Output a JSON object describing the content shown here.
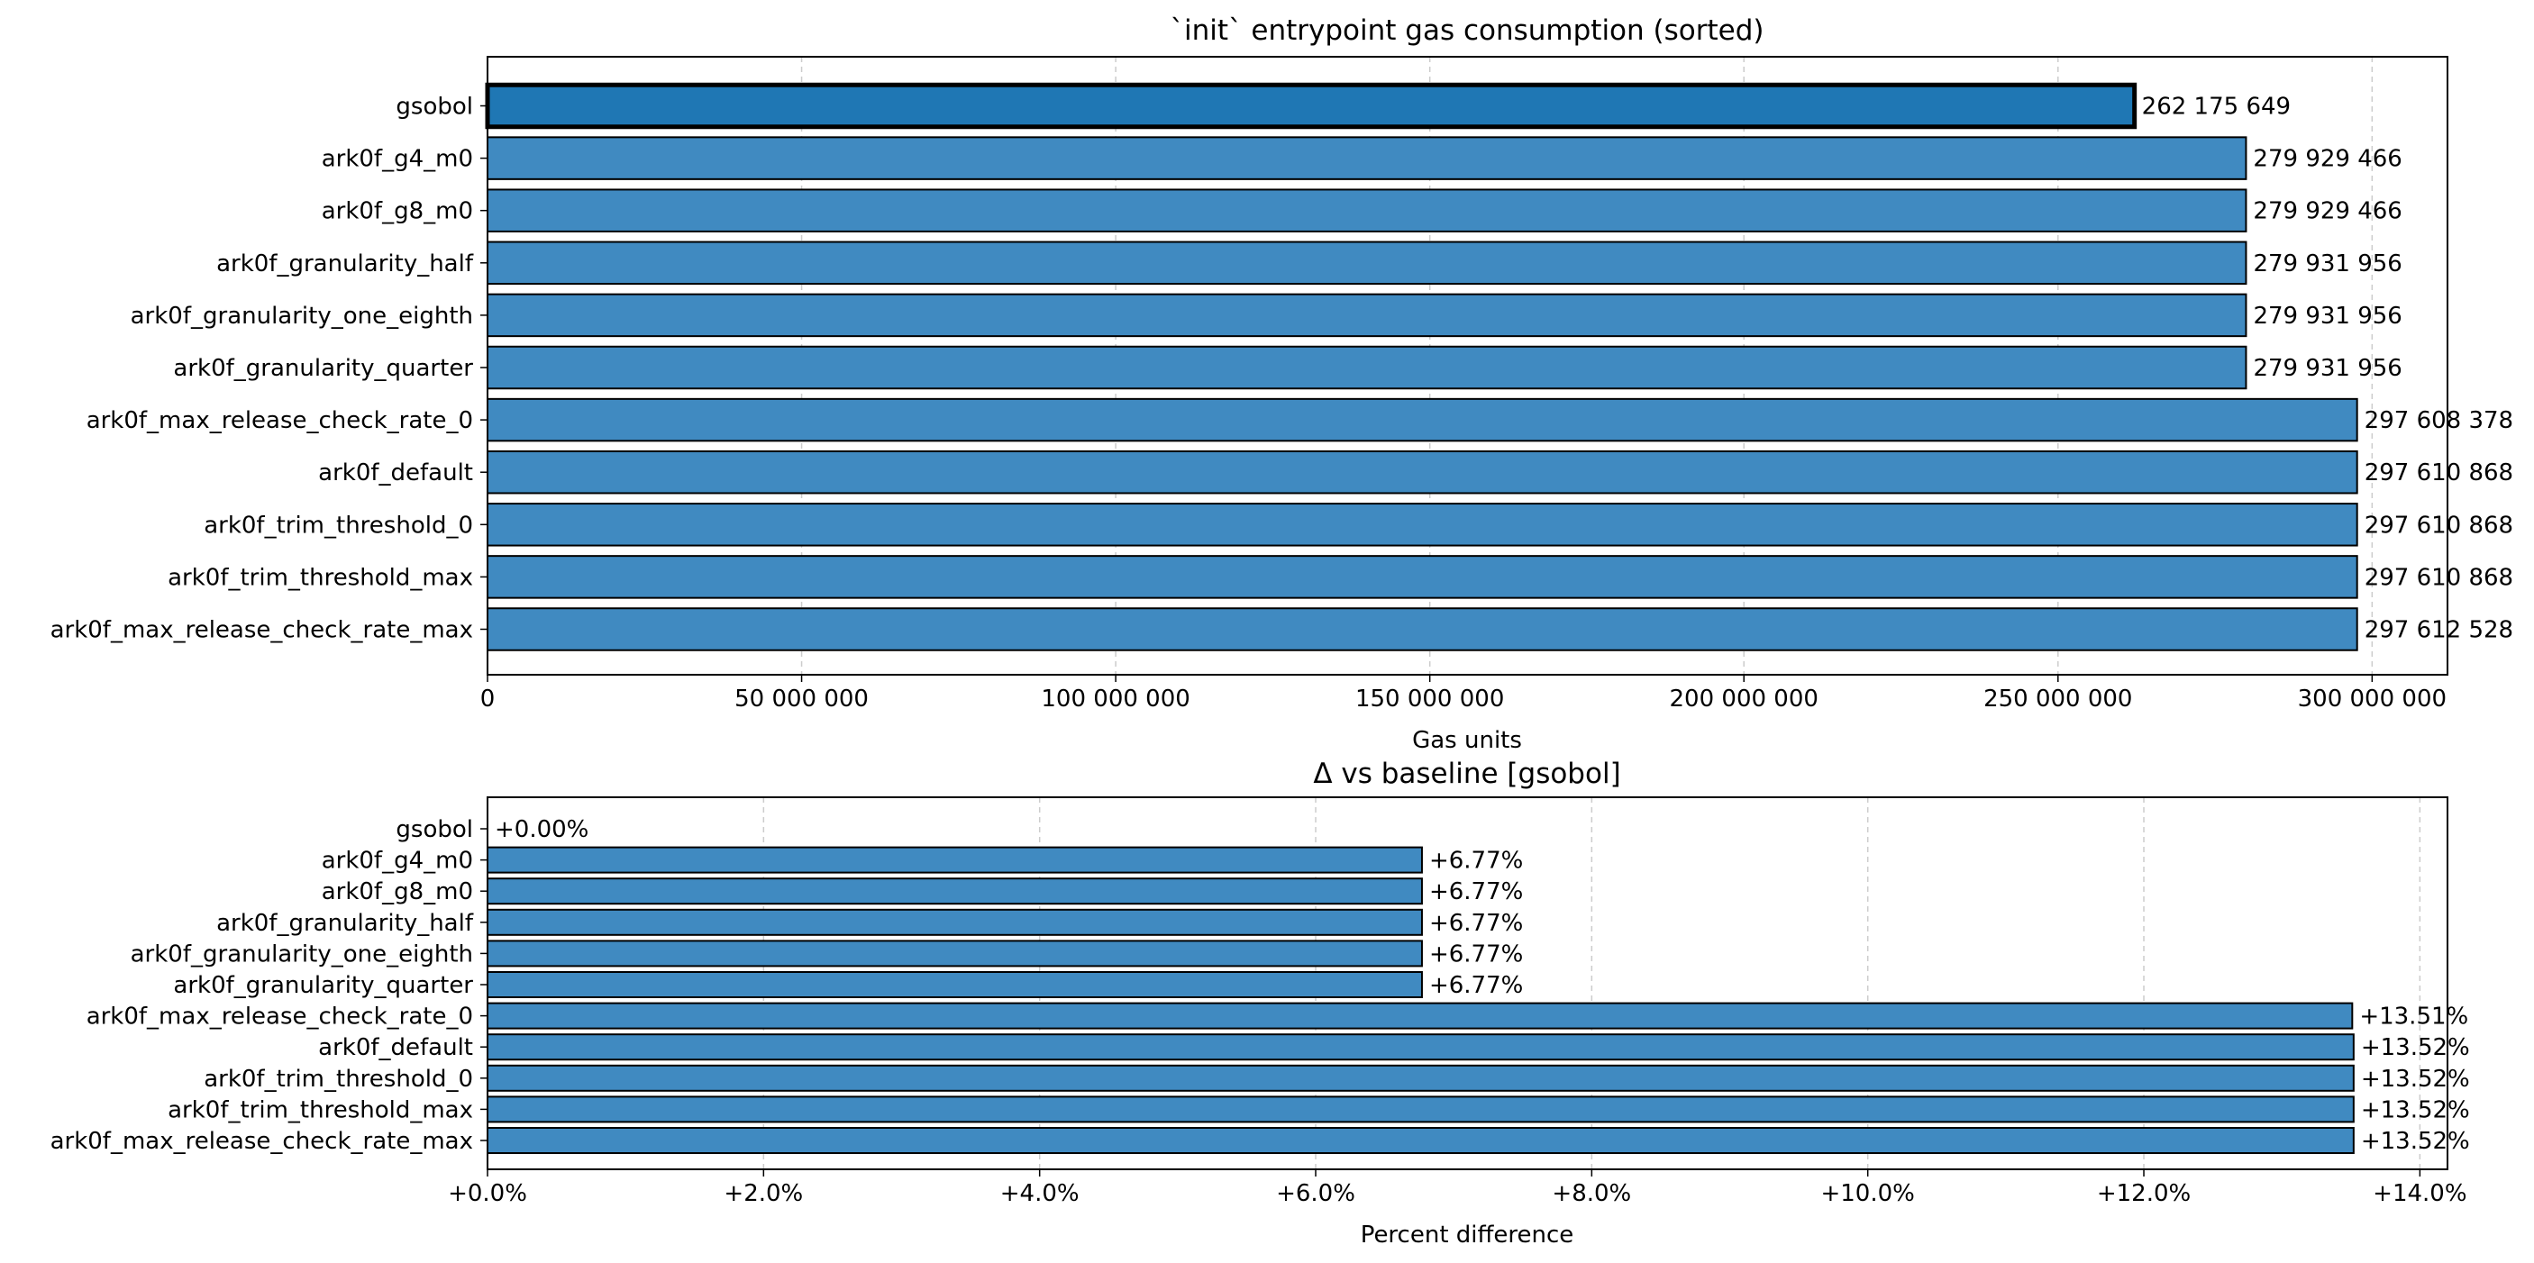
{
  "chart_data": [
    {
      "type": "bar",
      "orientation": "horizontal",
      "title": "`init` entrypoint gas consumption (sorted)",
      "xlabel": "Gas units",
      "ylabel": "",
      "xlim": [
        0,
        312000000
      ],
      "x_ticks": [
        0,
        50000000,
        100000000,
        150000000,
        200000000,
        250000000,
        300000000
      ],
      "x_tick_labels": [
        "0",
        "50 000 000",
        "100 000 000",
        "150 000 000",
        "200 000 000",
        "250 000 000",
        "300 000 000"
      ],
      "grid": "x-dashed",
      "highlighted_category": "gsobol",
      "categories": [
        "gsobol",
        "ark0f_g4_m0",
        "ark0f_g8_m0",
        "ark0f_granularity_half",
        "ark0f_granularity_one_eighth",
        "ark0f_granularity_quarter",
        "ark0f_max_release_check_rate_0",
        "ark0f_default",
        "ark0f_trim_threshold_0",
        "ark0f_trim_threshold_max",
        "ark0f_max_release_check_rate_max"
      ],
      "values": [
        262175649,
        279929466,
        279929466,
        279931956,
        279931956,
        279931956,
        297608378,
        297610868,
        297610868,
        297610868,
        297612528
      ],
      "value_labels": [
        "262 175 649",
        "279 929 466",
        "279 929 466",
        "279 931 956",
        "279 931 956",
        "279 931 956",
        "297 608 378",
        "297 610 868",
        "297 610 868",
        "297 610 868",
        "297 612 528"
      ],
      "colors": {
        "highlight": "#1f77b4",
        "bars": "#408ac1",
        "edge": "#000000",
        "grid": "#cccccc"
      }
    },
    {
      "type": "bar",
      "orientation": "horizontal",
      "title": "Δ vs baseline [gsobol]",
      "xlabel": "Percent difference",
      "ylabel": "",
      "xlim": [
        0,
        14.2
      ],
      "x_ticks": [
        0,
        2,
        4,
        6,
        8,
        10,
        12,
        14
      ],
      "x_tick_labels": [
        "+0.0%",
        "+2.0%",
        "+4.0%",
        "+6.0%",
        "+8.0%",
        "+10.0%",
        "+12.0%",
        "+14.0%"
      ],
      "grid": "x-dashed",
      "categories": [
        "gsobol",
        "ark0f_g4_m0",
        "ark0f_g8_m0",
        "ark0f_granularity_half",
        "ark0f_granularity_one_eighth",
        "ark0f_granularity_quarter",
        "ark0f_max_release_check_rate_0",
        "ark0f_default",
        "ark0f_trim_threshold_0",
        "ark0f_trim_threshold_max",
        "ark0f_max_release_check_rate_max"
      ],
      "values": [
        0.0,
        6.77,
        6.77,
        6.77,
        6.77,
        6.77,
        13.51,
        13.52,
        13.52,
        13.52,
        13.52
      ],
      "value_labels": [
        "+0.00%",
        "+6.77%",
        "+6.77%",
        "+6.77%",
        "+6.77%",
        "+6.77%",
        "+13.51%",
        "+13.52%",
        "+13.52%",
        "+13.52%",
        "+13.52%"
      ],
      "colors": {
        "bars": "#408ac1",
        "edge": "#000000",
        "grid": "#cccccc"
      }
    }
  ]
}
